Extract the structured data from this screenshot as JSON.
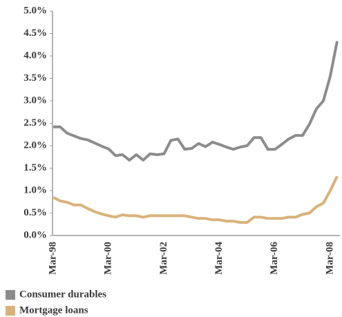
{
  "chart_data": {
    "type": "line",
    "categories": [
      "Mar-98",
      null,
      null,
      null,
      null,
      null,
      null,
      null,
      "Mar-00",
      null,
      null,
      null,
      null,
      null,
      null,
      null,
      "Mar-02",
      null,
      null,
      null,
      null,
      null,
      null,
      null,
      "Mar-04",
      null,
      null,
      null,
      null,
      null,
      null,
      null,
      "Mar-06",
      null,
      null,
      null,
      null,
      null,
      null,
      null,
      "Mar-08",
      null
    ],
    "series": [
      {
        "name": "Consumer durables",
        "color": "#8c8c8c",
        "values": [
          2.42,
          2.42,
          2.28,
          2.22,
          2.16,
          2.13,
          2.06,
          1.99,
          1.93,
          1.78,
          1.8,
          1.68,
          1.8,
          1.68,
          1.82,
          1.8,
          1.82,
          2.12,
          2.15,
          1.92,
          1.94,
          2.05,
          1.98,
          2.08,
          2.03,
          1.97,
          1.92,
          1.97,
          2.0,
          2.18,
          2.18,
          1.92,
          1.92,
          2.03,
          2.15,
          2.23,
          2.23,
          2.48,
          2.82,
          3.0,
          3.55,
          4.33
        ]
      },
      {
        "name": "Mortgage loans",
        "color": "#d9b27a",
        "values": [
          0.85,
          0.77,
          0.74,
          0.68,
          0.68,
          0.6,
          0.53,
          0.48,
          0.44,
          0.41,
          0.46,
          0.44,
          0.44,
          0.41,
          0.44,
          0.44,
          0.44,
          0.44,
          0.44,
          0.44,
          0.41,
          0.38,
          0.38,
          0.35,
          0.35,
          0.32,
          0.32,
          0.29,
          0.29,
          0.41,
          0.41,
          0.38,
          0.38,
          0.38,
          0.41,
          0.41,
          0.47,
          0.5,
          0.64,
          0.72,
          1.0,
          1.32
        ]
      }
    ],
    "ylim": [
      0,
      5
    ],
    "yticks": [
      {
        "value": 0,
        "label": "0.0%"
      },
      {
        "value": 0.5,
        "label": "0.5%"
      },
      {
        "value": 1,
        "label": "1.0%"
      },
      {
        "value": 1.5,
        "label": "1.5%"
      },
      {
        "value": 2,
        "label": "2.0%"
      },
      {
        "value": 2.5,
        "label": "2.5%"
      },
      {
        "value": 3,
        "label": "3.0%"
      },
      {
        "value": 3.5,
        "label": "3.5%"
      },
      {
        "value": 4,
        "label": "4.0%"
      },
      {
        "value": 4.5,
        "label": "4.5%"
      },
      {
        "value": 5,
        "label": "5.0%"
      }
    ],
    "grid": false
  }
}
